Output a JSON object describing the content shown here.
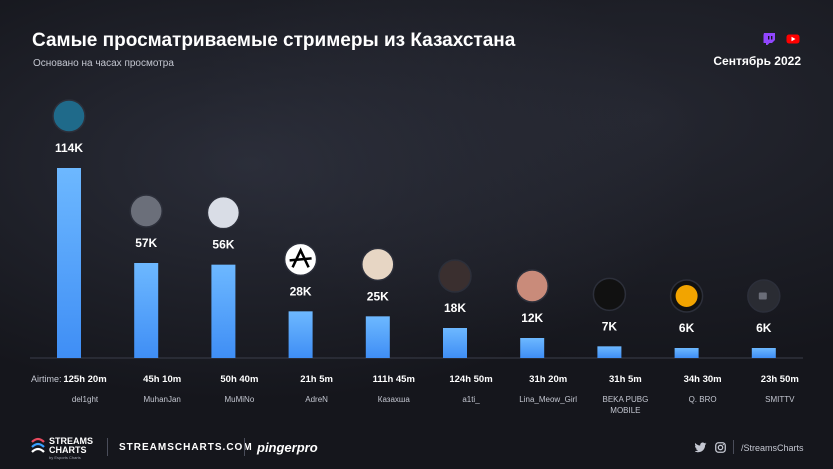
{
  "header": {
    "title": "Самые просматриваемые стримеры из Казахстана",
    "subtitle": "Основано на часах просмотра",
    "period": "Сентябрь 2022"
  },
  "platforms": [
    "twitch-icon",
    "youtube-icon"
  ],
  "colors": {
    "bar_top": "#6db8ff",
    "bar_bottom": "#3f8ef5",
    "twitch": "#9146ff",
    "youtube": "#ff0000",
    "background": "#15161c"
  },
  "chart_data": {
    "type": "bar",
    "categories": [
      "del1ght",
      "MuhanJan",
      "MuMiNo",
      "AdreN",
      "Казахша",
      "a1ti_",
      "Lina_Meow_Girl",
      "BEKA PUBG MOBILE",
      "Q. BRO",
      "SMITTV"
    ],
    "values": [
      114000,
      57000,
      56000,
      28000,
      25000,
      18000,
      12000,
      7000,
      6000,
      6000
    ],
    "value_labels": [
      "114K",
      "57K",
      "56K",
      "28K",
      "25K",
      "18K",
      "12K",
      "7K",
      "6K",
      "6K"
    ],
    "airtime_label": "Airtime:",
    "airtime": [
      "125h 20m",
      "45h 10m",
      "50h 40m",
      "21h 5m",
      "111h 45m",
      "124h 50m",
      "31h 20m",
      "31h 5m",
      "34h 30m",
      "23h 50m"
    ],
    "avatars": [
      "avatar-del1ght",
      "avatar-muhanjan",
      "avatar-mumino",
      "avatar-adren",
      "avatar-kazakhsha",
      "avatar-a1ti",
      "avatar-lina",
      "avatar-beka",
      "avatar-qbro",
      "avatar-smittv"
    ],
    "ylim": [
      0,
      114000
    ],
    "grid": false
  },
  "footer": {
    "brand_line1": "STREAMS",
    "brand_line2": "CHARTS",
    "brand_sub": "by Esports Charts",
    "site": "STREAMSCHARTS.COM",
    "partner": "pingerpro",
    "handle": "/StreamsCharts"
  }
}
